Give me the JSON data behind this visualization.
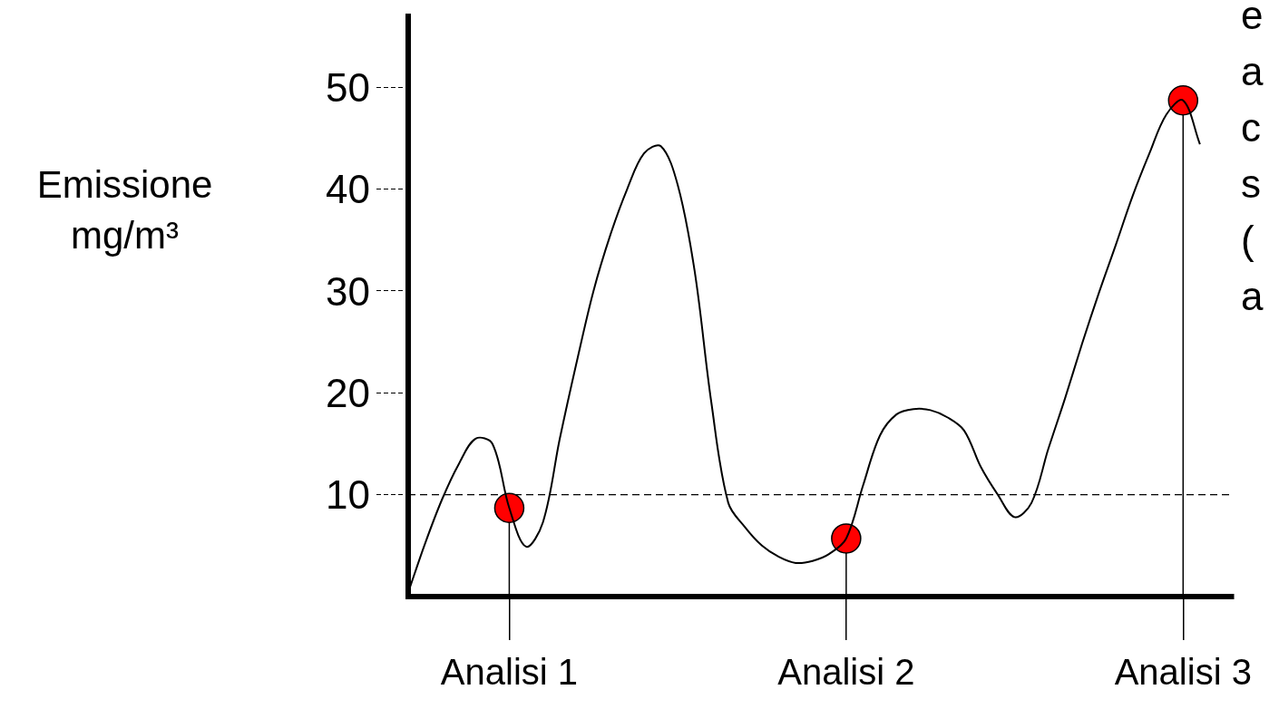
{
  "chart_data": {
    "type": "line",
    "ylabel": "Emissione\nmg/m³",
    "categories": [
      null,
      null,
      null,
      null,
      null,
      null,
      "Analisi 1",
      null,
      null,
      null,
      null,
      null,
      null,
      null,
      null,
      null,
      null,
      null,
      null,
      null,
      null,
      null,
      null,
      null,
      null,
      null,
      "Analisi 2",
      null,
      null,
      null,
      null,
      null,
      null,
      null,
      null,
      null,
      null,
      null,
      null,
      null,
      null,
      null,
      null,
      null,
      null,
      null,
      "Analisi 3",
      null,
      null,
      null
    ],
    "ylim": [
      0,
      57
    ],
    "yticks": [
      10,
      20,
      30,
      40,
      50
    ],
    "grid": false,
    "legend": false,
    "series": [
      {
        "color": "#000000",
        "marker": "none",
        "values": [
          0.4,
          5.2,
          9.5,
          13.0,
          15.5,
          15.0,
          8.7,
          4.9,
          7.3,
          15.5,
          23,
          30,
          35.5,
          40,
          43.5,
          44.2,
          40.4,
          32,
          19,
          9.2,
          6.8,
          5.0,
          3.9,
          3.3,
          3.5,
          4.2,
          5.7,
          10.9,
          15.8,
          17.9,
          18.4,
          18.3,
          17.6,
          16.3,
          12.7,
          10.0,
          7.8,
          9.2,
          14.5,
          19.5,
          24.8,
          29.8,
          34.5,
          39.3,
          43.5,
          47.3,
          48.7,
          44.4,
          null,
          null
        ]
      },
      {
        "type": "lollipop",
        "color": "#ff0000",
        "marker": "circle",
        "values": [
          null,
          null,
          null,
          null,
          null,
          null,
          8.7,
          null,
          null,
          null,
          null,
          null,
          null,
          null,
          null,
          null,
          null,
          null,
          null,
          null,
          null,
          null,
          null,
          null,
          null,
          null,
          5.7,
          null,
          null,
          null,
          null,
          null,
          null,
          null,
          null,
          null,
          null,
          null,
          null,
          null,
          null,
          null,
          null,
          null,
          null,
          null,
          48.7,
          null,
          null,
          null
        ]
      }
    ],
    "ref_lines": [
      {
        "axis": "y",
        "value": 10,
        "line_style": "dashed",
        "color": "#000000"
      }
    ],
    "annotations": [
      "e\na\nc\ns\n(\na"
    ]
  }
}
